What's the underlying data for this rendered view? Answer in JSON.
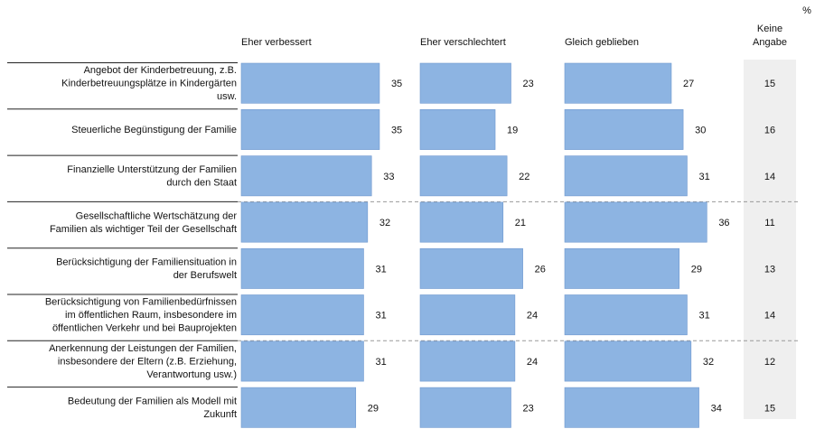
{
  "chart_data": {
    "type": "bar",
    "unit_label": "%",
    "series": [
      {
        "name": "Eher verbessert",
        "values": [
          35,
          35,
          33,
          32,
          31,
          31,
          31,
          29
        ]
      },
      {
        "name": "Eher verschlechtert",
        "values": [
          23,
          19,
          22,
          21,
          26,
          24,
          24,
          23
        ]
      },
      {
        "name": "Gleich geblieben",
        "values": [
          27,
          30,
          31,
          36,
          29,
          31,
          32,
          34
        ]
      }
    ],
    "keine_angabe": {
      "name_lines": [
        "Keine",
        "Angabe"
      ],
      "values": [
        15,
        16,
        14,
        11,
        13,
        14,
        12,
        15
      ]
    },
    "categories": [
      [
        "Angebot der Kinderbetreuung, z.B.",
        "Kinderbetreuungsplätze in Kindergärten",
        "usw."
      ],
      [
        "Steuerliche Begünstigung der Familie"
      ],
      [
        "Finanzielle Unterstützung der Familien",
        "durch den Staat"
      ],
      [
        "Gesellschaftliche Wertschätzung der",
        "Familien als wichtiger Teil der Gesellschaft"
      ],
      [
        "Berücksichtigung der Familiensituation in",
        "der Berufswelt"
      ],
      [
        "Berücksichtigung von Familienbedürfnissen",
        "im öffentlichen Raum, insbesondere im",
        "öffentlichen Verkehr und bei Bauprojekten"
      ],
      [
        "Anerkennung der Leistungen der Familien,",
        "insbesondere der Eltern (z.B. Erziehung,",
        "Verantwortung usw.)"
      ],
      [
        "Bedeutung der Familien als Modell mit",
        "Zukunft"
      ]
    ],
    "colors": {
      "bar": "#8db4e2",
      "bar_stroke": "#6f98cf",
      "keine_bg": "#efefef"
    }
  }
}
